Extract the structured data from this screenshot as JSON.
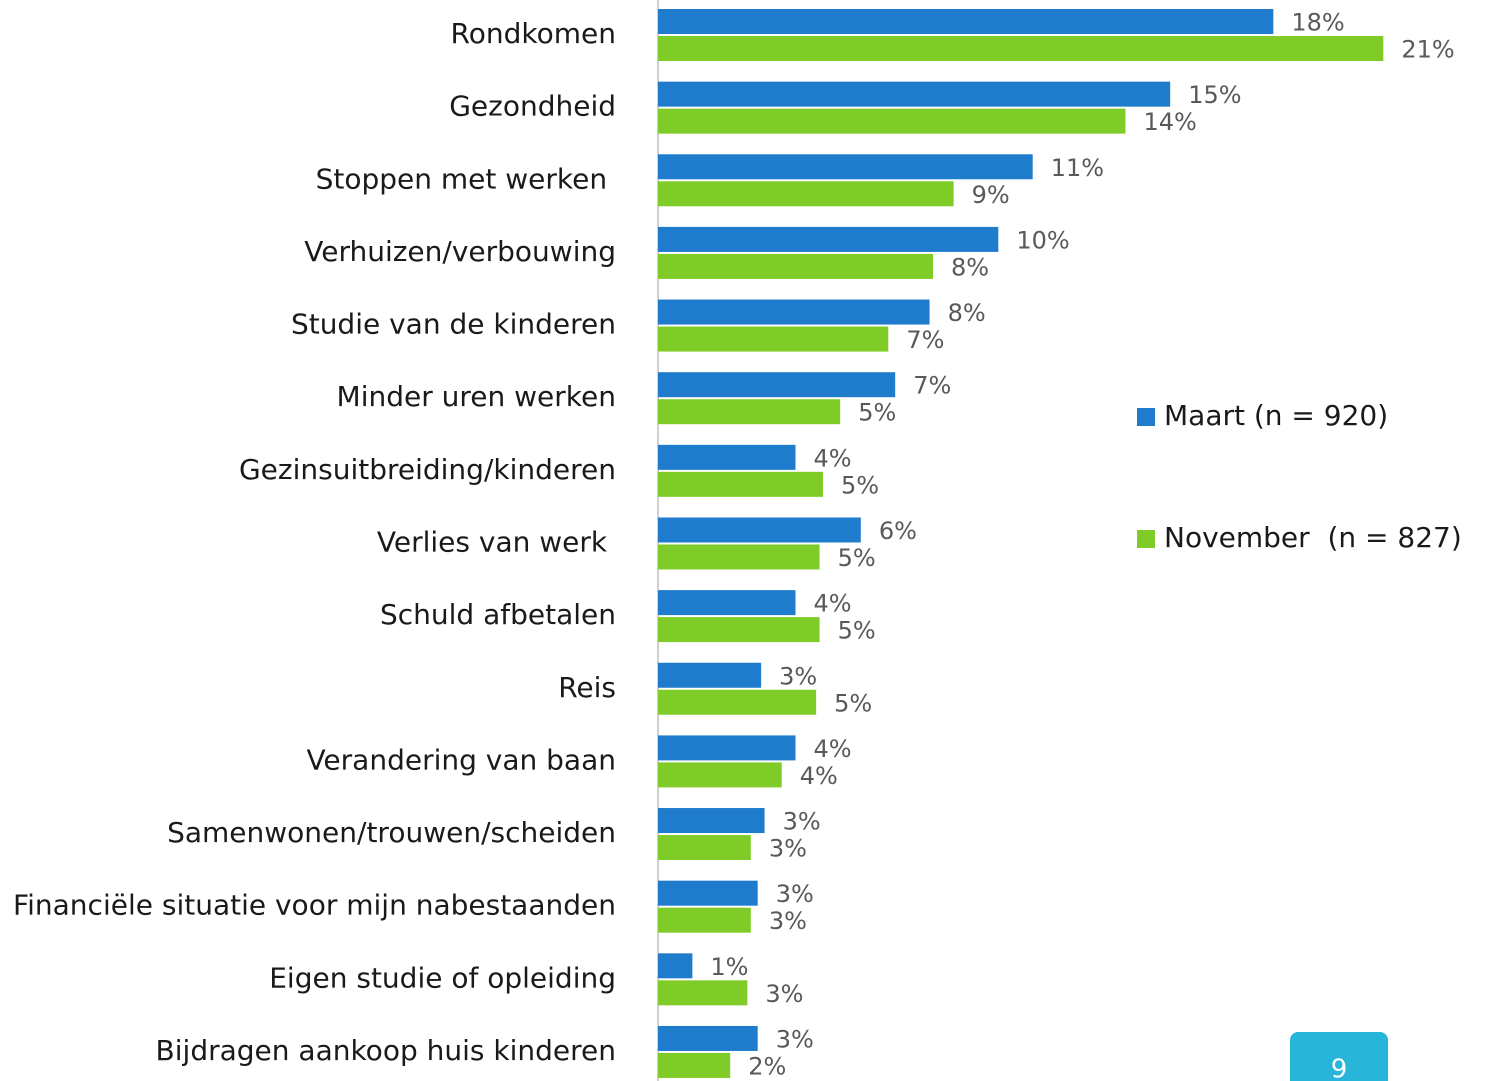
{
  "chart_data": {
    "type": "bar",
    "orientation": "horizontal",
    "categories": [
      "Rondkomen",
      "Gezondheid",
      "Stoppen met werken ",
      "Verhuizen/verbouwing",
      "Studie van de kinderen",
      "Minder uren werken",
      "Gezinsuitbreiding/kinderen",
      "Verlies van werk ",
      "Schuld afbetalen",
      "Reis",
      "Verandering van baan",
      "Samenwonen/trouwen/scheiden",
      "Financiële situatie voor mijn nabestaanden",
      "Eigen studie of opleiding",
      "Bijdragen aankoop huis kinderen"
    ],
    "series": [
      {
        "name": "Maart (n = 920)",
        "color": "#1f7ccc",
        "values": [
          17.9,
          14.9,
          10.9,
          9.9,
          7.9,
          6.9,
          4.0,
          5.9,
          4.0,
          3.0,
          4.0,
          3.1,
          2.9,
          1.0,
          2.9
        ],
        "value_labels": [
          "18%",
          "15%",
          "11%",
          "10%",
          "8%",
          "7%",
          "4%",
          "6%",
          "4%",
          "3%",
          "4%",
          "3%",
          "3%",
          "1%",
          "3%"
        ]
      },
      {
        "name": "November  (n = 827)",
        "color": "#7fcc28",
        "values": [
          21.1,
          13.6,
          8.6,
          8.0,
          6.7,
          5.3,
          4.8,
          4.7,
          4.7,
          4.6,
          3.6,
          2.7,
          2.7,
          2.6,
          2.1
        ],
        "value_labels": [
          "21%",
          "14%",
          "9%",
          "8%",
          "7%",
          "5%",
          "5%",
          "5%",
          "5%",
          "5%",
          "4%",
          "3%",
          "3%",
          "3%",
          "2%"
        ]
      }
    ],
    "xlim": [
      0,
      24
    ],
    "legend": "right"
  },
  "page_number": "9"
}
